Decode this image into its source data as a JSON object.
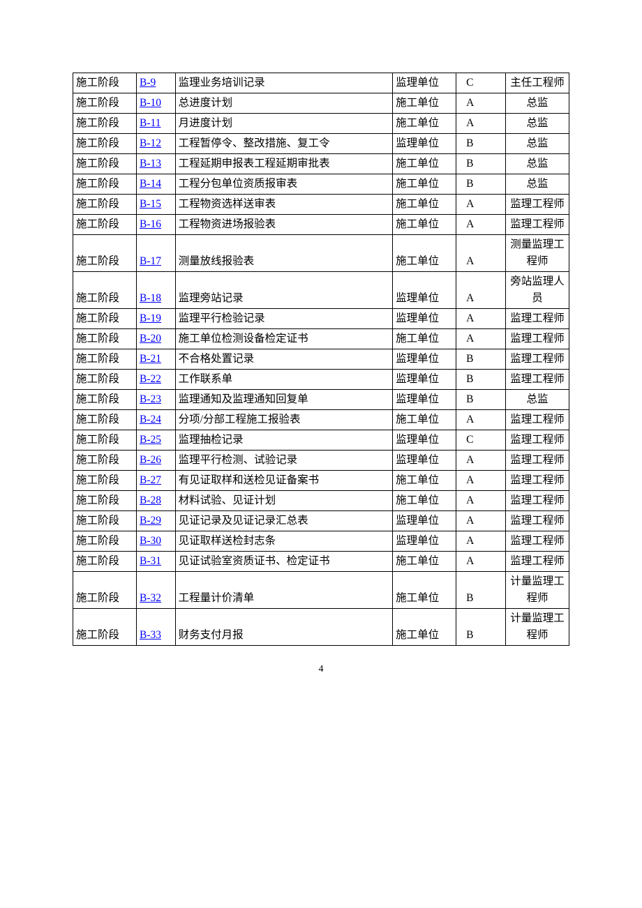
{
  "page_number": "4",
  "link_color": "#0000ff",
  "table": {
    "columns": 6,
    "rows": [
      {
        "phase": "施工阶段",
        "code": "B-9",
        "name": "监理业务培训记录",
        "unit": "监理单位",
        "cls": "C",
        "resp": "主任工程师"
      },
      {
        "phase": "施工阶段",
        "code": "B-10",
        "name": "总进度计划",
        "unit": "施工单位",
        "cls": "A",
        "resp": "总监"
      },
      {
        "phase": "施工阶段",
        "code": "B-11",
        "name": "月进度计划",
        "unit": "施工单位",
        "cls": "A",
        "resp": "总监"
      },
      {
        "phase": "施工阶段",
        "code": "B-12",
        "name": "工程暂停令、整改措施、复工令",
        "unit": "监理单位",
        "cls": "B",
        "resp": "总监"
      },
      {
        "phase": "施工阶段",
        "code": "B-13",
        "name": "工程延期申报表工程延期审批表",
        "unit": "施工单位",
        "cls": "B",
        "resp": "总监"
      },
      {
        "phase": "施工阶段",
        "code": "B-14",
        "name": "工程分包单位资质报审表",
        "unit": "施工单位",
        "cls": "B",
        "resp": "总监"
      },
      {
        "phase": "施工阶段",
        "code": "B-15",
        "name": "工程物资选样送审表",
        "unit": "施工单位",
        "cls": "A",
        "resp": "监理工程师"
      },
      {
        "phase": "施工阶段",
        "code": "B-16",
        "name": "工程物资进场报验表",
        "unit": "施工单位",
        "cls": "A",
        "resp": "监理工程师"
      },
      {
        "phase": "施工阶段",
        "code": "B-17",
        "name": "测量放线报验表",
        "unit": "施工单位",
        "cls": "A",
        "resp": "测量监理工程师"
      },
      {
        "phase": "施工阶段",
        "code": "B-18",
        "name": "监理旁站记录",
        "unit": "监理单位",
        "cls": "A",
        "resp": "旁站监理人员"
      },
      {
        "phase": "施工阶段",
        "code": "B-19",
        "name": "监理平行检验记录",
        "unit": "监理单位",
        "cls": "A",
        "resp": "监理工程师"
      },
      {
        "phase": "施工阶段",
        "code": "B-20",
        "name": "施工单位检测设备检定证书",
        "unit": "施工单位",
        "cls": "A",
        "resp": "监理工程师"
      },
      {
        "phase": "施工阶段",
        "code": "B-21",
        "name": "不合格处置记录",
        "unit": "监理单位",
        "cls": "B",
        "resp": "监理工程师"
      },
      {
        "phase": "施工阶段",
        "code": "B-22",
        "name": "工作联系单",
        "unit": "监理单位",
        "cls": "B",
        "resp": "监理工程师"
      },
      {
        "phase": "施工阶段",
        "code": "B-23",
        "name": "监理通知及监理通知回复单",
        "unit": "监理单位",
        "cls": "B",
        "resp": "总监"
      },
      {
        "phase": "施工阶段",
        "code": "B-24",
        "name": "分项/分部工程施工报验表",
        "unit": "施工单位",
        "cls": "A",
        "resp": "监理工程师"
      },
      {
        "phase": "施工阶段",
        "code": "B-25",
        "name": "监理抽检记录",
        "unit": "监理单位",
        "cls": "C",
        "resp": "监理工程师"
      },
      {
        "phase": "施工阶段",
        "code": "B-26",
        "name": "监理平行检测、试验记录",
        "unit": "监理单位",
        "cls": "A",
        "resp": "监理工程师"
      },
      {
        "phase": "施工阶段",
        "code": "B-27",
        "name": "有见证取样和送检见证备案书",
        "unit": "施工单位",
        "cls": "A",
        "resp": "监理工程师"
      },
      {
        "phase": "施工阶段",
        "code": "B-28",
        "name": "材料试验、见证计划",
        "unit": "施工单位",
        "cls": "A",
        "resp": "监理工程师"
      },
      {
        "phase": "施工阶段",
        "code": "B-29",
        "name": "见证记录及见证记录汇总表",
        "unit": "监理单位",
        "cls": "A",
        "resp": "监理工程师"
      },
      {
        "phase": "施工阶段",
        "code": "B-30",
        "name": "见证取样送检封志条",
        "unit": "监理单位",
        "cls": "A",
        "resp": "监理工程师"
      },
      {
        "phase": "施工阶段",
        "code": "B-31",
        "name": "见证试验室资质证书、检定证书",
        "unit": "施工单位",
        "cls": "A",
        "resp": "监理工程师"
      },
      {
        "phase": "施工阶段",
        "code": "B-32",
        "name": "工程量计价清单",
        "unit": "施工单位",
        "cls": "B",
        "resp": "计量监理工程师"
      },
      {
        "phase": "施工阶段",
        "code": "B-33",
        "name": "财务支付月报",
        "unit": "施工单位",
        "cls": "B",
        "resp": "计量监理工程师"
      }
    ]
  }
}
